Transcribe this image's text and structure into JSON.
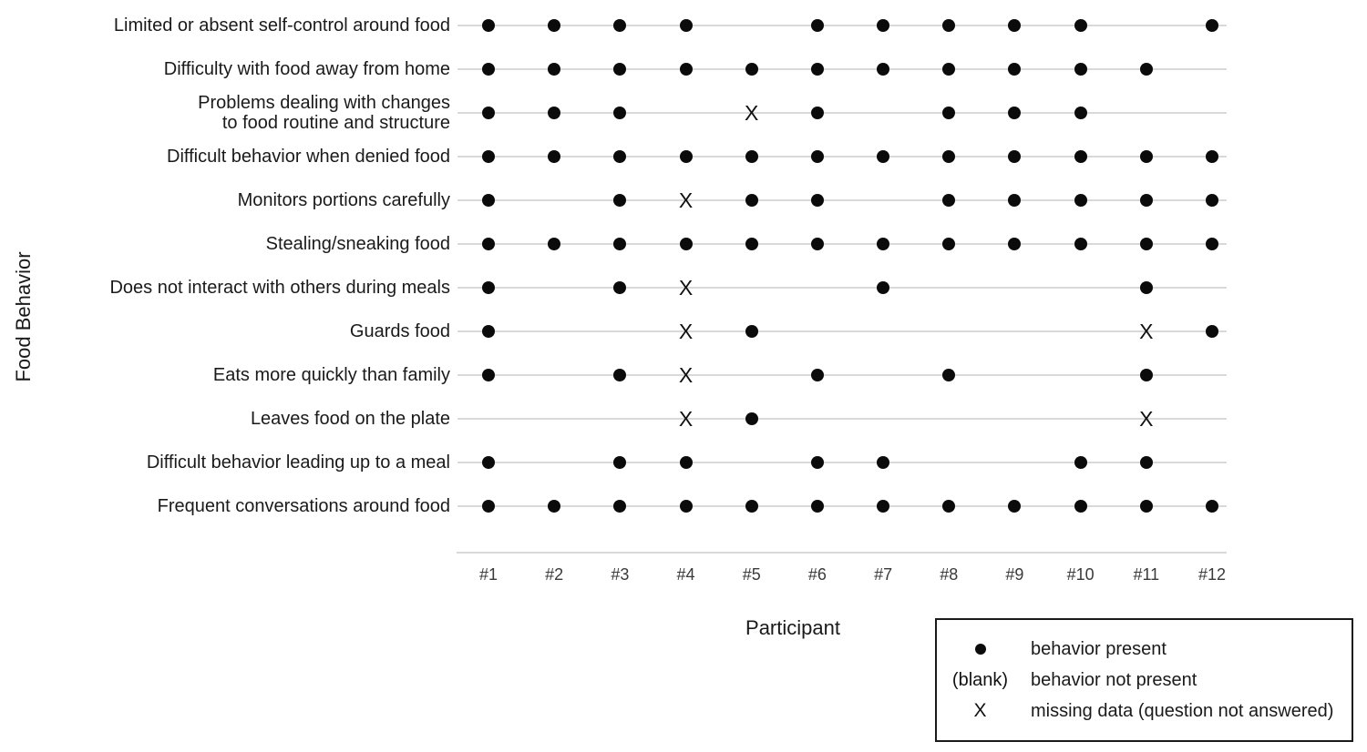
{
  "chart_data": {
    "type": "dot-matrix",
    "xlabel": "Participant",
    "ylabel": "Food Behavior",
    "columns": [
      "#1",
      "#2",
      "#3",
      "#4",
      "#5",
      "#6",
      "#7",
      "#8",
      "#9",
      "#10",
      "#11",
      "#12"
    ],
    "cell_encoding": {
      "1": "behavior present",
      "": "behavior not present (blank)",
      "X": "missing data"
    },
    "rows": [
      {
        "label": "Limited or absent self-control around food",
        "label_lines": [
          "Limited or absent self-control around food"
        ],
        "cells": [
          "1",
          "1",
          "1",
          "1",
          "",
          "1",
          "1",
          "1",
          "1",
          "1",
          "",
          "1"
        ]
      },
      {
        "label": "Difficulty with food away from home",
        "label_lines": [
          "Difficulty with food away from home"
        ],
        "cells": [
          "1",
          "1",
          "1",
          "1",
          "1",
          "1",
          "1",
          "1",
          "1",
          "1",
          "1",
          ""
        ]
      },
      {
        "label": "Problems dealing with changes to food routine and structure",
        "label_lines": [
          "Problems dealing with changes",
          "to food routine and structure"
        ],
        "cells": [
          "1",
          "1",
          "1",
          "",
          "X",
          "1",
          "",
          "1",
          "1",
          "1",
          "",
          ""
        ]
      },
      {
        "label": "Difficult behavior when denied food",
        "label_lines": [
          "Difficult behavior when denied food"
        ],
        "cells": [
          "1",
          "1",
          "1",
          "1",
          "1",
          "1",
          "1",
          "1",
          "1",
          "1",
          "1",
          "1"
        ]
      },
      {
        "label": "Monitors portions carefully",
        "label_lines": [
          "Monitors portions carefully"
        ],
        "cells": [
          "1",
          "",
          "1",
          "X",
          "1",
          "1",
          "",
          "1",
          "1",
          "1",
          "1",
          "1"
        ]
      },
      {
        "label": "Stealing/sneaking food",
        "label_lines": [
          "Stealing/sneaking food"
        ],
        "cells": [
          "1",
          "1",
          "1",
          "1",
          "1",
          "1",
          "1",
          "1",
          "1",
          "1",
          "1",
          "1"
        ]
      },
      {
        "label": "Does not interact with others during meals",
        "label_lines": [
          "Does not interact with others during meals"
        ],
        "cells": [
          "1",
          "",
          "1",
          "X",
          "",
          "",
          "1",
          "",
          "",
          "",
          "1",
          ""
        ]
      },
      {
        "label": "Guards food",
        "label_lines": [
          "Guards food"
        ],
        "cells": [
          "1",
          "",
          "",
          "X",
          "1",
          "",
          "",
          "",
          "",
          "",
          "X",
          "1"
        ]
      },
      {
        "label": "Eats more quickly than family",
        "label_lines": [
          "Eats more quickly than family"
        ],
        "cells": [
          "1",
          "",
          "1",
          "X",
          "",
          "1",
          "",
          "1",
          "",
          "",
          "1",
          ""
        ]
      },
      {
        "label": "Leaves food on the plate",
        "label_lines": [
          "Leaves food on the plate"
        ],
        "cells": [
          "",
          "",
          "",
          "X",
          "1",
          "",
          "",
          "",
          "",
          "",
          "X",
          ""
        ]
      },
      {
        "label": "Difficult behavior leading up to a meal",
        "label_lines": [
          "Difficult behavior leading up to a meal"
        ],
        "cells": [
          "1",
          "",
          "1",
          "1",
          "",
          "1",
          "1",
          "",
          "",
          "1",
          "1",
          ""
        ]
      },
      {
        "label": "Frequent conversations around food",
        "label_lines": [
          "Frequent conversations around food"
        ],
        "cells": [
          "1",
          "1",
          "1",
          "1",
          "1",
          "1",
          "1",
          "1",
          "1",
          "1",
          "1",
          "1"
        ]
      }
    ],
    "legend": {
      "items": [
        {
          "symbol": "dot",
          "label": "behavior present"
        },
        {
          "symbol": "(blank)",
          "label": "behavior not present"
        },
        {
          "symbol": "X",
          "label": "missing data (question not answered)"
        }
      ]
    },
    "colors": {
      "dot": "#0b0b0b",
      "grid_line": "#d9d9d9",
      "text": "#1a1a1a",
      "tick_text": "#3a3a3a",
      "legend_border": "#1a1a1a",
      "background": "#ffffff"
    }
  }
}
